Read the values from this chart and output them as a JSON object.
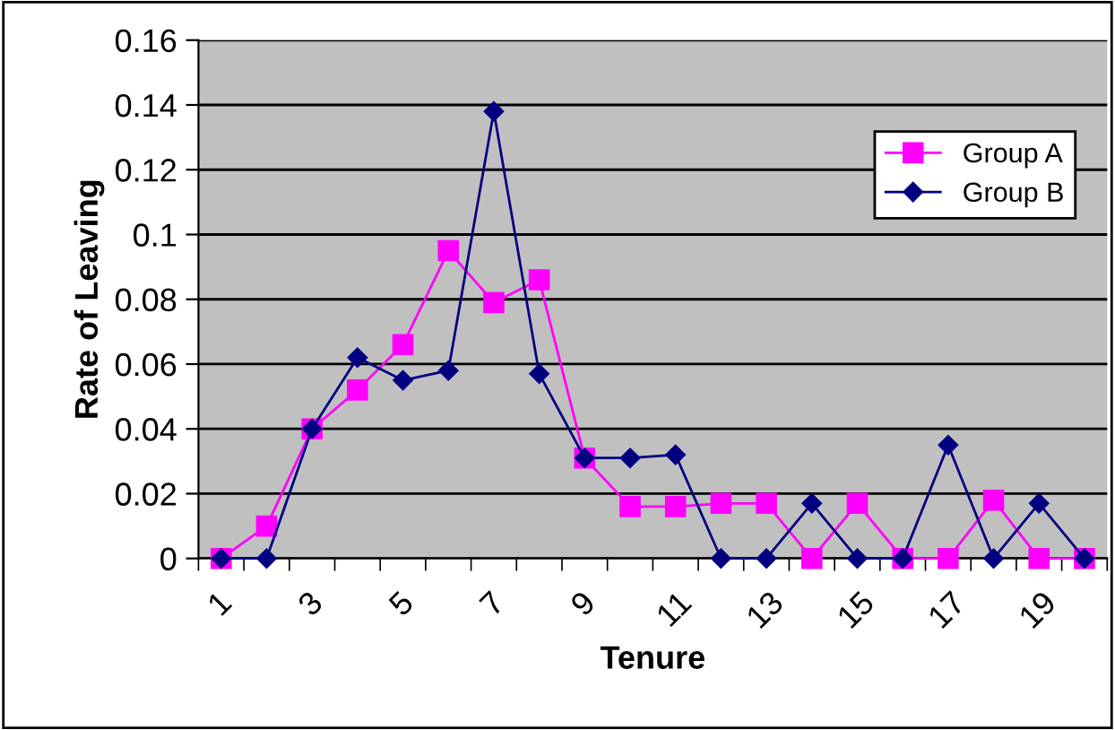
{
  "chart_data": {
    "type": "line",
    "xlabel": "Tenure",
    "ylabel": "Rate of Leaving",
    "categories": [
      "1",
      null,
      "3",
      null,
      "5",
      null,
      "7",
      null,
      "9",
      null,
      "11",
      null,
      "13",
      null,
      "15",
      null,
      "17",
      null,
      "19",
      null
    ],
    "series": [
      {
        "name": "Group A",
        "color": "#ff00ff",
        "marker": "square",
        "values": [
          0,
          0.01,
          0.04,
          0.052,
          0.066,
          0.095,
          0.079,
          0.086,
          0.031,
          0.016,
          0.016,
          0.017,
          0.017,
          0,
          0.017,
          0,
          0,
          0.018,
          0,
          0
        ]
      },
      {
        "name": "Group B",
        "color": "#000080",
        "marker": "diamond",
        "values": [
          0,
          0,
          0.04,
          0.062,
          0.055,
          0.058,
          0.138,
          0.057,
          0.031,
          0.031,
          0.032,
          0,
          0,
          0.017,
          0,
          0,
          0.035,
          0,
          0.017,
          0
        ]
      }
    ],
    "ylim": [
      0,
      0.16
    ],
    "yticks": [
      0,
      0.02,
      0.04,
      0.06,
      0.08,
      0.1,
      0.12,
      0.14,
      0.16
    ],
    "grid": "y",
    "legend": "right"
  }
}
